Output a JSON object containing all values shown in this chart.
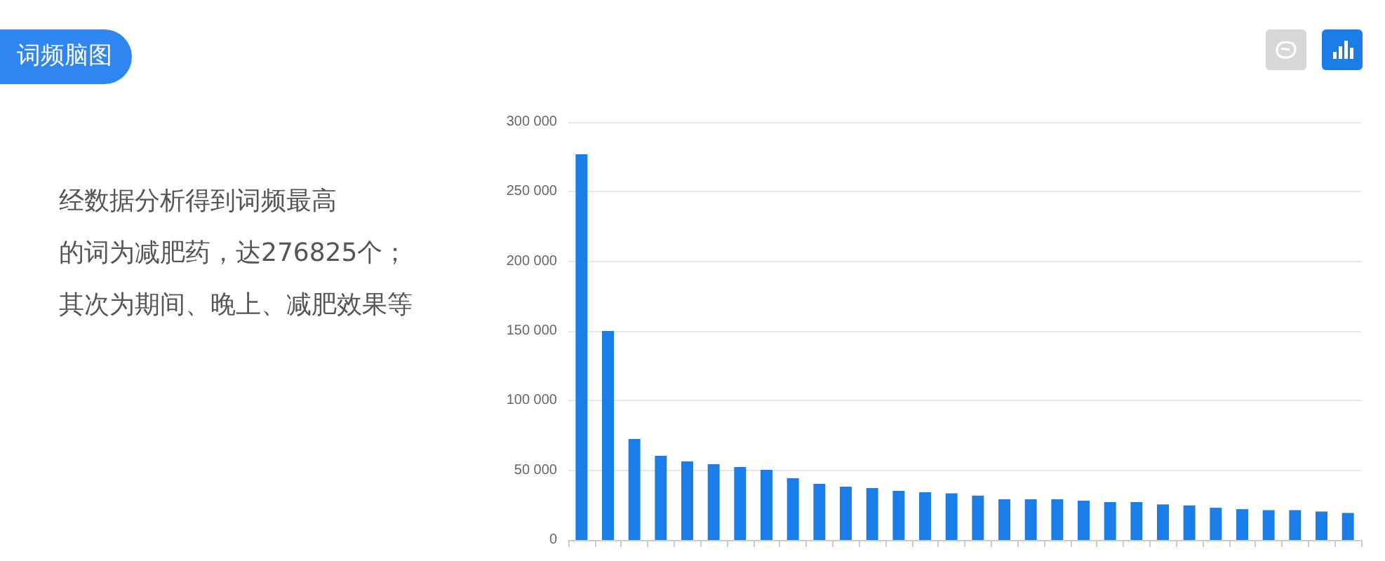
{
  "chart_data": {
    "type": "bar",
    "title": "词频脑图",
    "annotations": [
      "经数据分析得到词频最高",
      "的词为减肥药，达276825个；",
      "其次为期间、晚上、减肥效果等"
    ],
    "categories": [
      null,
      null,
      null,
      null,
      null,
      null,
      null,
      null,
      null,
      null,
      null,
      null,
      null,
      null,
      null,
      null,
      null,
      null,
      null,
      null,
      null,
      null,
      null,
      null,
      null,
      null,
      null,
      null,
      null,
      null
    ],
    "values": [
      276825,
      150000,
      72500,
      60400,
      56400,
      54400,
      52400,
      50300,
      44300,
      40300,
      38300,
      37200,
      35200,
      34200,
      33500,
      31900,
      29200,
      29200,
      29200,
      28200,
      27200,
      27200,
      25500,
      24800,
      23100,
      22100,
      21400,
      21400,
      20400,
      19400
    ],
    "color": "#1a7de8",
    "ylim": [
      0,
      300000
    ],
    "yticks": [
      {
        "value": 0,
        "label": "0"
      },
      {
        "value": 50000,
        "label": "50 000"
      },
      {
        "value": 100000,
        "label": "100 000"
      },
      {
        "value": 150000,
        "label": "150 000"
      },
      {
        "value": 200000,
        "label": "200 000"
      },
      {
        "value": 250000,
        "label": "250 000"
      },
      {
        "value": 300000,
        "label": "300 000"
      }
    ],
    "grid": "y"
  }
}
